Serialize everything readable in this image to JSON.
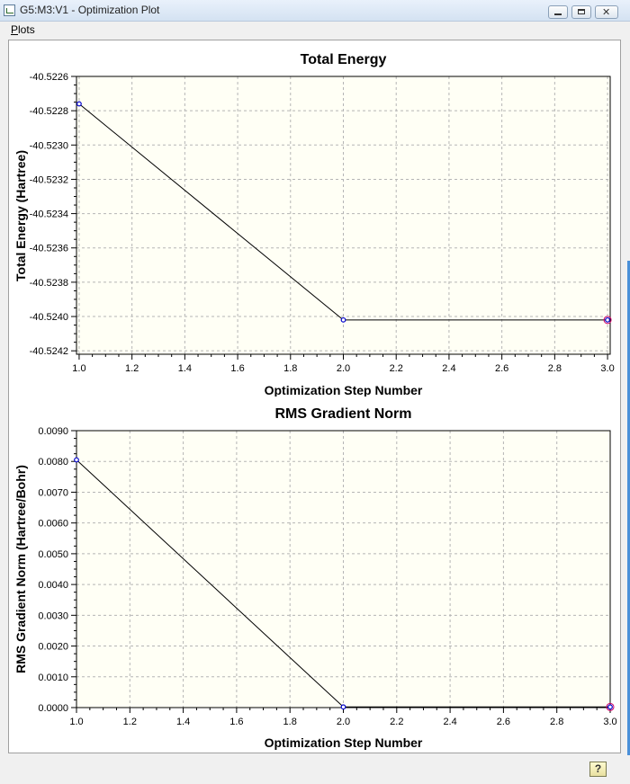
{
  "window": {
    "title": "G5:M3:V1 - Optimization Plot"
  },
  "menu": {
    "plots": "Plots"
  },
  "status": {
    "help": "?"
  },
  "chart_data": [
    {
      "type": "line",
      "title": "Total Energy",
      "xlabel": "Optimization Step Number",
      "ylabel": "Total Energy (Hartree)",
      "x": [
        1.0,
        2.0,
        3.0
      ],
      "series": [
        {
          "values": [
            -40.52276,
            -40.52402,
            -40.52402
          ]
        }
      ],
      "xlim": [
        0.99,
        3.01
      ],
      "ylim": [
        -40.52422,
        -40.5226
      ],
      "xticks": [
        1.0,
        1.2,
        1.4,
        1.6,
        1.8,
        2.0,
        2.2,
        2.4,
        2.6,
        2.8,
        3.0
      ],
      "xtick_labels": [
        "1.0",
        "1.2",
        "1.4",
        "1.6",
        "1.8",
        "2.0",
        "2.2",
        "2.4",
        "2.6",
        "2.8",
        "3.0"
      ],
      "yticks": [
        -40.5226,
        -40.5228,
        -40.523,
        -40.5232,
        -40.5234,
        -40.5236,
        -40.5238,
        -40.524,
        -40.5242
      ],
      "ytick_labels": [
        "-40.5226",
        "-40.5228",
        "-40.5230",
        "-40.5232",
        "-40.5234",
        "-40.5236",
        "-40.5238",
        "-40.5240",
        "-40.5242"
      ],
      "grid": true,
      "line_color": "#000000",
      "marker_color": "#0000cc",
      "highlight_color": "#cc0066",
      "plot_bg": "#fffff5"
    },
    {
      "type": "line",
      "title": "RMS Gradient Norm",
      "xlabel": "Optimization Step Number",
      "ylabel": "RMS Gradient Norm (Hartree/Bohr)",
      "x": [
        1.0,
        2.0,
        3.0
      ],
      "series": [
        {
          "values": [
            0.00805,
            2e-05,
            2e-05
          ]
        }
      ],
      "xlim": [
        1.0,
        3.0
      ],
      "ylim": [
        0.0,
        0.009
      ],
      "xticks": [
        1.0,
        1.2,
        1.4,
        1.6,
        1.8,
        2.0,
        2.2,
        2.4,
        2.6,
        2.8,
        3.0
      ],
      "xtick_labels": [
        "1.0",
        "1.2",
        "1.4",
        "1.6",
        "1.8",
        "2.0",
        "2.2",
        "2.4",
        "2.6",
        "2.8",
        "3.0"
      ],
      "yticks": [
        0.0,
        0.001,
        0.002,
        0.003,
        0.004,
        0.005,
        0.006,
        0.007,
        0.008,
        0.009
      ],
      "ytick_labels": [
        "0.0000",
        "0.0010",
        "0.0020",
        "0.0030",
        "0.0040",
        "0.0050",
        "0.0060",
        "0.0070",
        "0.0080",
        "0.0090"
      ],
      "grid": true,
      "line_color": "#000000",
      "marker_color": "#0000cc",
      "highlight_color": "#cc0066",
      "plot_bg": "#fffff5"
    }
  ]
}
